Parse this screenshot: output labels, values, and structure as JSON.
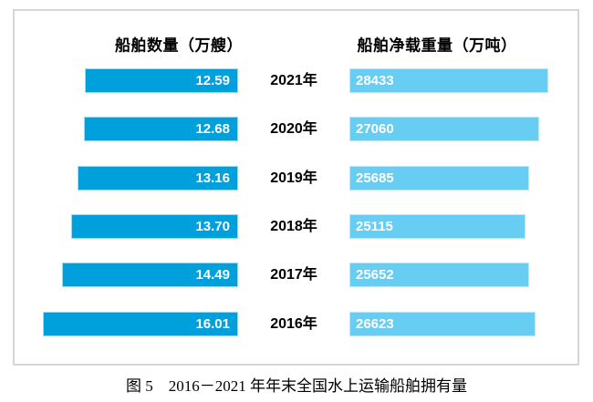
{
  "header": {
    "left": "船舶数量（万艘）",
    "right": "船舶净载重量（万吨）"
  },
  "caption": "图 5　2016－2021 年年末全国水上运输船舶拥有量",
  "colors": {
    "ships_bar": "#00a0dc",
    "dwt_bar": "#68cdf2",
    "bar_value_text": "#ffffff",
    "frame_border": "#d6d6d6",
    "text": "#000000"
  },
  "chart_data": {
    "type": "bar",
    "orientation": "horizontal-diverging",
    "title": "图 5　2016－2021 年年末全国水上运输船舶拥有量",
    "categories": [
      "2021年",
      "2020年",
      "2019年",
      "2018年",
      "2017年",
      "2016年"
    ],
    "series": [
      {
        "name": "船舶数量（万艘）",
        "side": "left",
        "color": "#00a0dc",
        "values": [
          12.59,
          12.68,
          13.16,
          13.7,
          14.49,
          16.01
        ],
        "value_labels": [
          "12.59",
          "12.68",
          "13.16",
          "13.70",
          "14.49",
          "16.01"
        ]
      },
      {
        "name": "船舶净载重量（万吨）",
        "side": "right",
        "color": "#68cdf2",
        "values": [
          28433,
          27060,
          25685,
          25115,
          25652,
          26623
        ],
        "value_labels": [
          "28433",
          "27060",
          "25685",
          "25115",
          "25652",
          "26623"
        ]
      }
    ],
    "layout_hints": {
      "grid": false,
      "legend_position": "top-as-column-headers",
      "value_labels_inside_bars": true,
      "left_axis_range": [
        0,
        16.01
      ],
      "right_axis_range": [
        0,
        28433
      ]
    }
  }
}
